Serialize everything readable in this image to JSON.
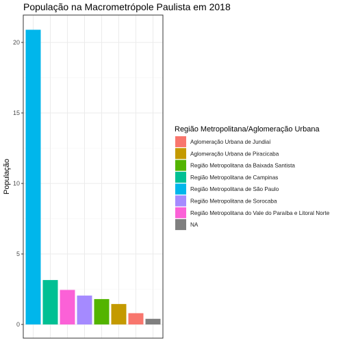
{
  "chart_data": {
    "type": "bar",
    "title": "População na Macrometrópole Paulista em 2018",
    "xlabel": "",
    "ylabel": "População",
    "ylim": [
      0,
      22
    ],
    "yticks": [
      0,
      5,
      10,
      15,
      20
    ],
    "grid": true,
    "legend_position": "right",
    "legend_title": "Região Metropolitana/Aglomeração Urbana",
    "legend": [
      {
        "name": "Aglomeração Urbana de Jundiaí",
        "color": "#F8766D"
      },
      {
        "name": "Aglomeração Urbana de Piracicaba",
        "color": "#C49A00"
      },
      {
        "name": "Região Metropolitana da Baixada Santista",
        "color": "#53B400"
      },
      {
        "name": "Região Metropolitana de Campinas",
        "color": "#00C094"
      },
      {
        "name": "Região Metropolitana de São Paulo",
        "color": "#00B6EB"
      },
      {
        "name": "Região Metropolitana de Sorocaba",
        "color": "#A58AFF"
      },
      {
        "name": "Região Metropolitana do Vale do Paraíba e Litoral Norte",
        "color": "#FB61D7"
      },
      {
        "name": "NA",
        "color": "#7F7F7F"
      }
    ],
    "bars": [
      {
        "category": "Região Metropolitana de São Paulo",
        "value": 20.9
      },
      {
        "category": "Região Metropolitana de Campinas",
        "value": 3.15
      },
      {
        "category": "Região Metropolitana do Vale do Paraíba e Litoral Norte",
        "value": 2.45
      },
      {
        "category": "Região Metropolitana de Sorocaba",
        "value": 2.05
      },
      {
        "category": "Região Metropolitana da Baixada Santista",
        "value": 1.8
      },
      {
        "category": "Aglomeração Urbana de Piracicaba",
        "value": 1.45
      },
      {
        "category": "Aglomeração Urbana de Jundiaí",
        "value": 0.8
      },
      {
        "category": "NA",
        "value": 0.4
      }
    ]
  }
}
